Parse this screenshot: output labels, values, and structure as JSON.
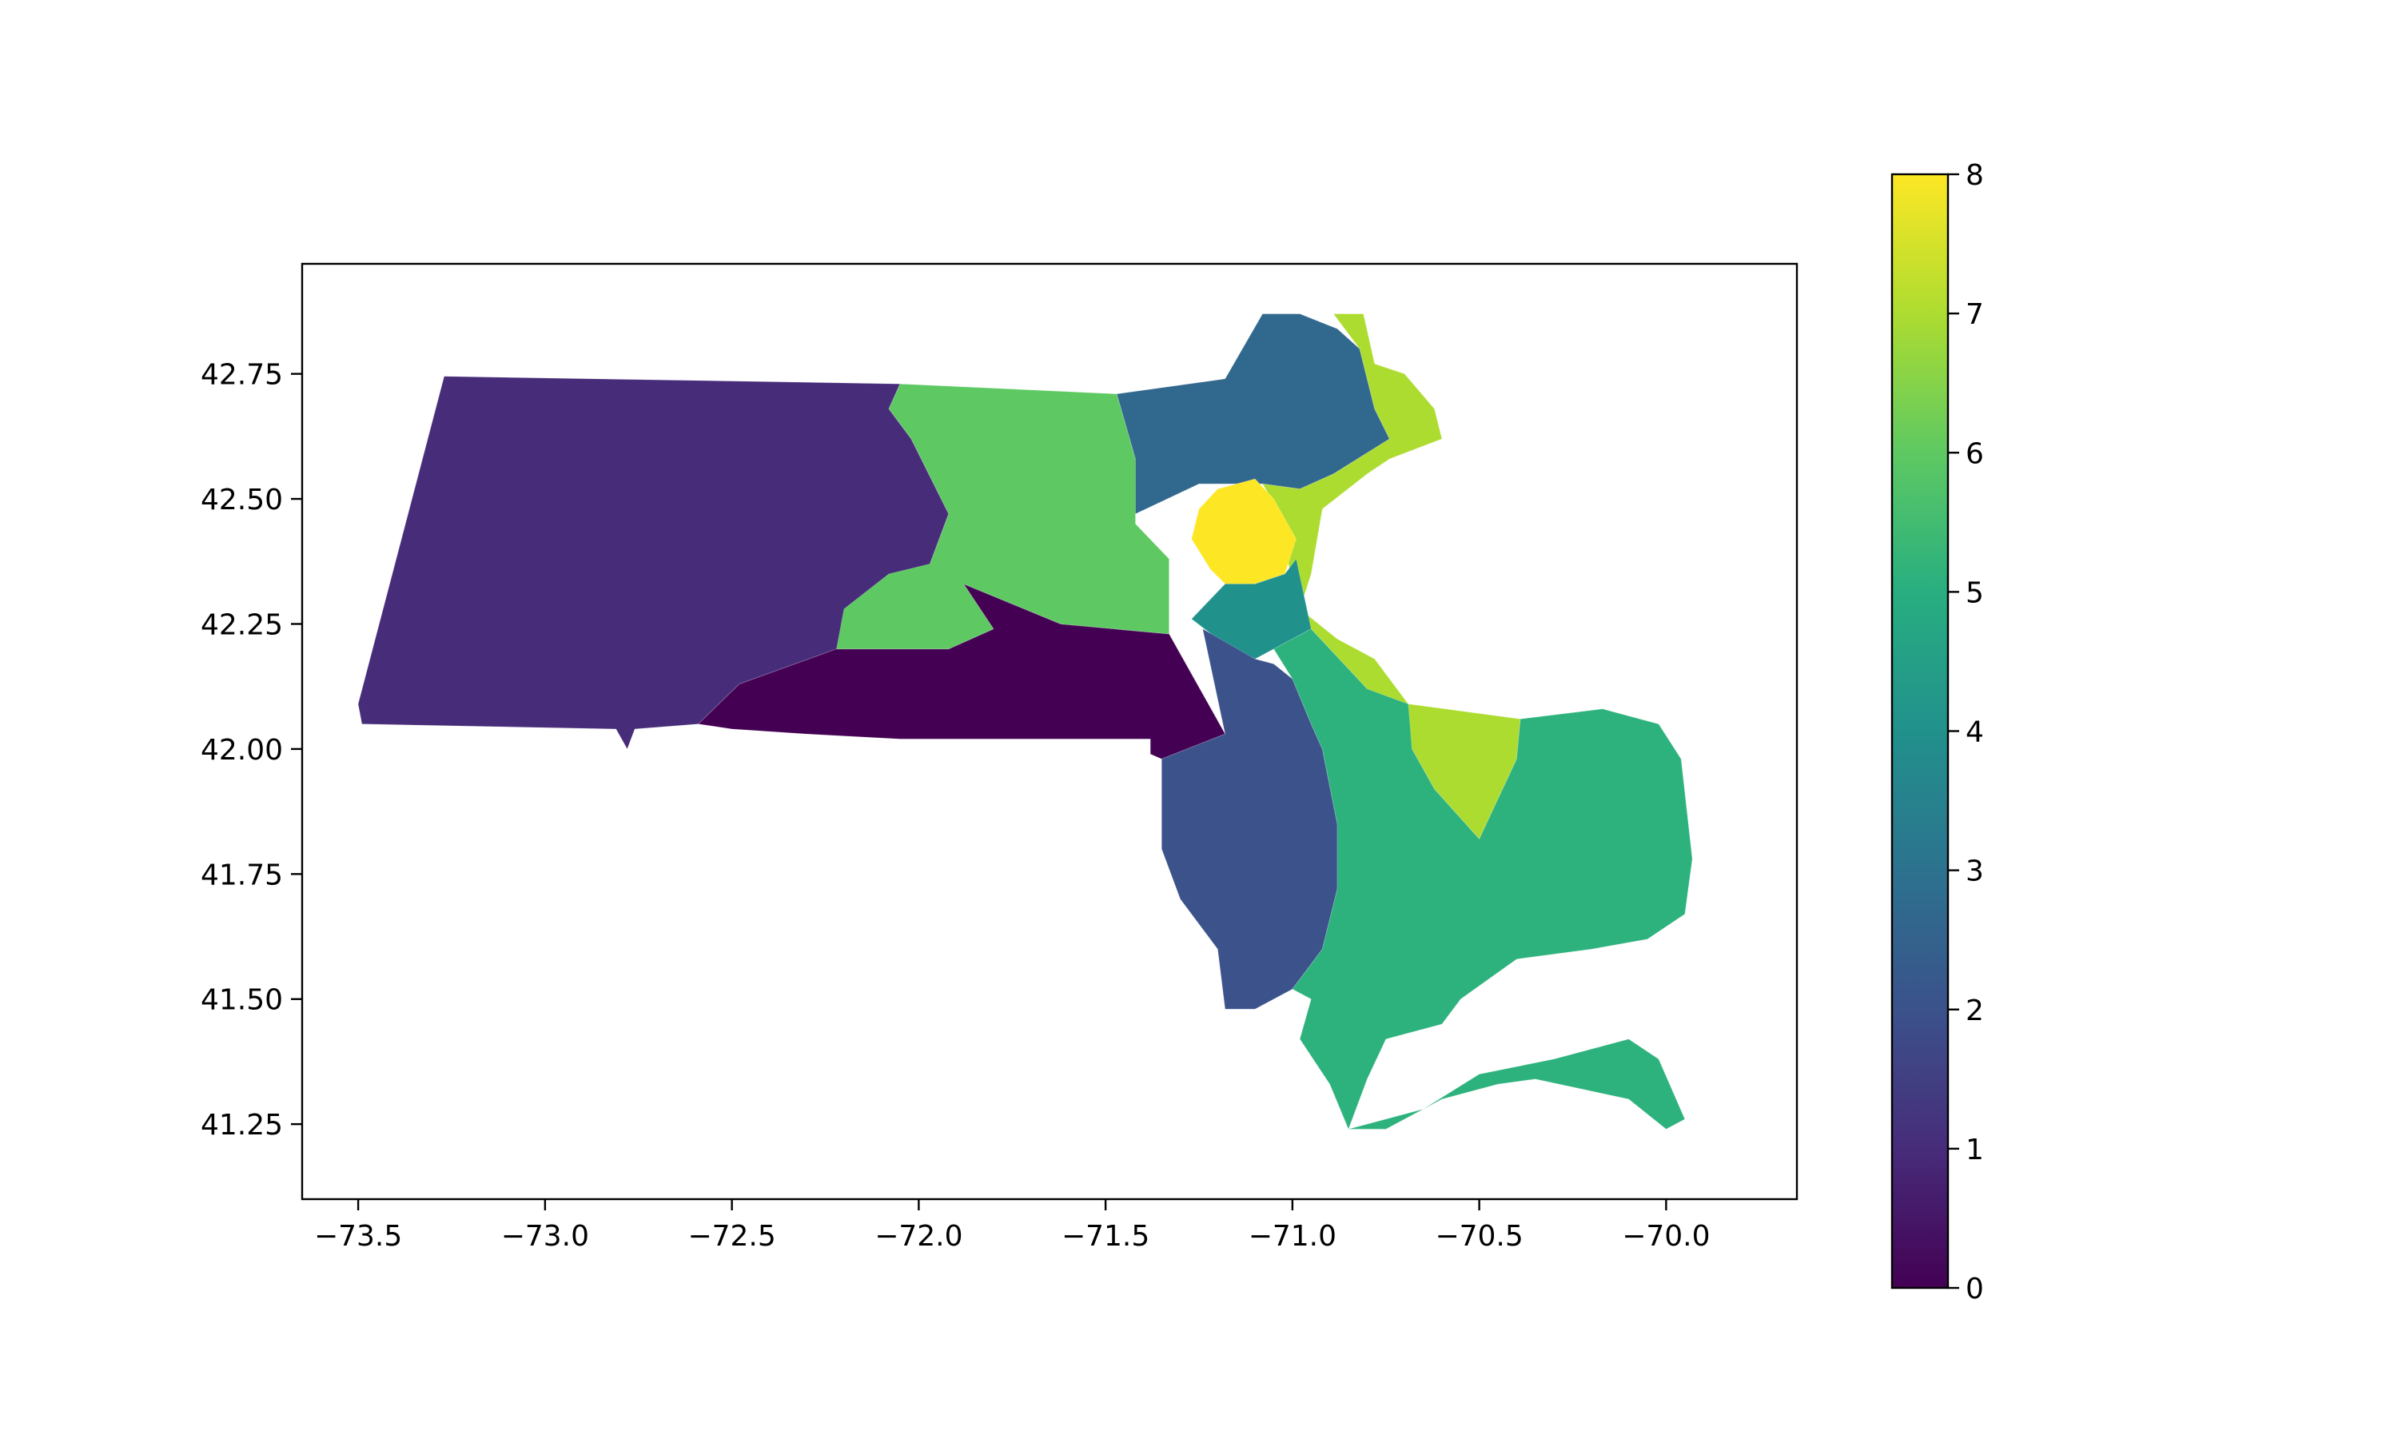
{
  "chart_data": {
    "type": "choropleth",
    "title": "",
    "xlabel": "",
    "ylabel": "",
    "xlim": [
      -73.65,
      -69.65
    ],
    "ylim": [
      41.1,
      42.97
    ],
    "grid": false,
    "x_ticks": [
      {
        "value": -73.5,
        "label": "−73.5"
      },
      {
        "value": -73.0,
        "label": "−73.0"
      },
      {
        "value": -72.5,
        "label": "−72.5"
      },
      {
        "value": -72.0,
        "label": "−72.0"
      },
      {
        "value": -71.5,
        "label": "−71.5"
      },
      {
        "value": -71.0,
        "label": "−71.0"
      },
      {
        "value": -70.5,
        "label": "−70.5"
      },
      {
        "value": -70.0,
        "label": "−70.0"
      }
    ],
    "y_ticks": [
      {
        "value": 42.75,
        "label": "42.75"
      },
      {
        "value": 42.5,
        "label": "42.50"
      },
      {
        "value": 42.25,
        "label": "42.25"
      },
      {
        "value": 42.0,
        "label": "42.00"
      },
      {
        "value": 41.75,
        "label": "41.75"
      },
      {
        "value": 41.5,
        "label": "41.50"
      },
      {
        "value": 41.25,
        "label": "41.25"
      }
    ],
    "colorbar": {
      "colormap": "viridis",
      "range": [
        0,
        8
      ],
      "ticks": [
        {
          "value": 0,
          "label": "0"
        },
        {
          "value": 1,
          "label": "1"
        },
        {
          "value": 2,
          "label": "2"
        },
        {
          "value": 3,
          "label": "3"
        },
        {
          "value": 4,
          "label": "4"
        },
        {
          "value": 5,
          "label": "5"
        },
        {
          "value": 6,
          "label": "6"
        },
        {
          "value": 7,
          "label": "7"
        },
        {
          "value": 8,
          "label": "8"
        }
      ]
    },
    "regions": [
      {
        "id": "district-1",
        "value": 1,
        "color": "#472c7a",
        "lonlat": [
          [
            -73.27,
            42.745
          ],
          [
            -72.05,
            42.73
          ],
          [
            -72.08,
            42.68
          ],
          [
            -72.02,
            42.62
          ],
          [
            -71.92,
            42.47
          ],
          [
            -71.97,
            42.37
          ],
          [
            -71.88,
            42.33
          ],
          [
            -71.8,
            42.24
          ],
          [
            -72.22,
            42.2
          ],
          [
            -72.48,
            42.13
          ],
          [
            -72.59,
            42.05
          ],
          [
            -72.76,
            42.04
          ],
          [
            -72.78,
            42.0
          ],
          [
            -72.81,
            42.04
          ],
          [
            -73.49,
            42.05
          ],
          [
            -73.5,
            42.09
          ]
        ]
      },
      {
        "id": "district-0",
        "value": 0,
        "color": "#440154",
        "lonlat": [
          [
            -72.59,
            42.05
          ],
          [
            -72.48,
            42.13
          ],
          [
            -72.22,
            42.2
          ],
          [
            -71.92,
            42.2
          ],
          [
            -71.8,
            42.24
          ],
          [
            -71.88,
            42.33
          ],
          [
            -71.62,
            42.25
          ],
          [
            -71.33,
            42.23
          ],
          [
            -71.24,
            42.11
          ],
          [
            -71.18,
            42.03
          ],
          [
            -71.35,
            41.98
          ],
          [
            -71.38,
            41.99
          ],
          [
            -71.38,
            42.02
          ],
          [
            -71.8,
            42.02
          ],
          [
            -72.05,
            42.02
          ],
          [
            -72.3,
            42.03
          ],
          [
            -72.5,
            42.04
          ]
        ]
      },
      {
        "id": "district-6",
        "value": 6,
        "color": "#5ec962",
        "lonlat": [
          [
            -72.05,
            42.73
          ],
          [
            -71.47,
            42.71
          ],
          [
            -71.42,
            42.58
          ],
          [
            -71.42,
            42.45
          ],
          [
            -71.33,
            42.38
          ],
          [
            -71.33,
            42.23
          ],
          [
            -71.62,
            42.25
          ],
          [
            -71.88,
            42.33
          ],
          [
            -71.8,
            42.24
          ],
          [
            -71.92,
            42.2
          ],
          [
            -72.22,
            42.2
          ],
          [
            -72.2,
            42.28
          ],
          [
            -72.08,
            42.35
          ],
          [
            -71.97,
            42.37
          ],
          [
            -71.92,
            42.47
          ],
          [
            -72.02,
            42.62
          ],
          [
            -72.08,
            42.68
          ]
        ]
      },
      {
        "id": "district-3",
        "value": 3,
        "color": "#31688e",
        "lonlat": [
          [
            -71.47,
            42.71
          ],
          [
            -71.18,
            42.74
          ],
          [
            -71.08,
            42.87
          ],
          [
            -70.98,
            42.87
          ],
          [
            -70.88,
            42.84
          ],
          [
            -70.82,
            42.8
          ],
          [
            -70.78,
            42.68
          ],
          [
            -70.74,
            42.62
          ],
          [
            -70.89,
            42.55
          ],
          [
            -70.98,
            42.52
          ],
          [
            -71.08,
            42.53
          ],
          [
            -71.25,
            42.53
          ],
          [
            -71.42,
            42.47
          ],
          [
            -71.42,
            42.58
          ]
        ]
      },
      {
        "id": "district-7",
        "value": 7,
        "color": "#addc30",
        "lonlat": [
          [
            -70.89,
            42.87
          ],
          [
            -70.81,
            42.87
          ],
          [
            -70.78,
            42.77
          ],
          [
            -70.7,
            42.75
          ],
          [
            -70.62,
            42.68
          ],
          [
            -70.6,
            42.62
          ],
          [
            -70.74,
            42.58
          ],
          [
            -70.8,
            42.55
          ],
          [
            -70.92,
            42.48
          ],
          [
            -70.95,
            42.35
          ],
          [
            -70.98,
            42.28
          ],
          [
            -70.88,
            42.22
          ],
          [
            -70.78,
            42.18
          ],
          [
            -70.69,
            42.09
          ],
          [
            -70.39,
            42.06
          ],
          [
            -70.4,
            41.98
          ],
          [
            -70.5,
            41.82
          ],
          [
            -70.62,
            41.92
          ],
          [
            -70.68,
            42.0
          ],
          [
            -70.8,
            42.12
          ],
          [
            -70.95,
            42.24
          ],
          [
            -71.05,
            42.26
          ],
          [
            -71.0,
            42.33
          ],
          [
            -71.04,
            42.48
          ],
          [
            -71.08,
            42.53
          ],
          [
            -70.98,
            42.52
          ],
          [
            -70.89,
            42.55
          ],
          [
            -70.74,
            42.62
          ],
          [
            -70.78,
            42.68
          ],
          [
            -70.82,
            42.8
          ]
        ]
      },
      {
        "id": "district-8",
        "value": 8,
        "color": "#fde725",
        "lonlat": [
          [
            -71.25,
            42.48
          ],
          [
            -71.2,
            42.52
          ],
          [
            -71.1,
            42.54
          ],
          [
            -71.05,
            42.5
          ],
          [
            -70.99,
            42.42
          ],
          [
            -71.02,
            42.35
          ],
          [
            -71.1,
            42.33
          ],
          [
            -71.18,
            42.33
          ],
          [
            -71.22,
            42.36
          ],
          [
            -71.27,
            42.42
          ]
        ]
      },
      {
        "id": "district-4",
        "value": 4,
        "color": "#21918c",
        "lonlat": [
          [
            -71.18,
            42.33
          ],
          [
            -71.1,
            42.33
          ],
          [
            -71.02,
            42.35
          ],
          [
            -70.99,
            42.38
          ],
          [
            -70.95,
            42.24
          ],
          [
            -71.05,
            42.2
          ],
          [
            -71.1,
            42.18
          ],
          [
            -71.2,
            42.22
          ],
          [
            -71.27,
            42.26
          ]
        ]
      },
      {
        "id": "district-2",
        "value": 2,
        "color": "#3b528b",
        "lonlat": [
          [
            -71.24,
            42.24
          ],
          [
            -71.1,
            42.18
          ],
          [
            -71.05,
            42.17
          ],
          [
            -71.0,
            42.14
          ],
          [
            -70.95,
            42.05
          ],
          [
            -70.92,
            42.0
          ],
          [
            -70.88,
            41.85
          ],
          [
            -70.88,
            41.72
          ],
          [
            -70.92,
            41.6
          ],
          [
            -71.0,
            41.52
          ],
          [
            -71.1,
            41.48
          ],
          [
            -71.18,
            41.48
          ],
          [
            -71.2,
            41.6
          ],
          [
            -71.3,
            41.7
          ],
          [
            -71.35,
            41.8
          ],
          [
            -71.35,
            41.98
          ],
          [
            -71.18,
            42.03
          ]
        ]
      },
      {
        "id": "district-5",
        "value": 5,
        "color": "#2db27d",
        "lonlat": [
          [
            -71.05,
            42.2
          ],
          [
            -70.95,
            42.24
          ],
          [
            -70.8,
            42.12
          ],
          [
            -70.69,
            42.09
          ],
          [
            -70.68,
            42.0
          ],
          [
            -70.62,
            41.92
          ],
          [
            -70.5,
            41.82
          ],
          [
            -70.4,
            41.98
          ],
          [
            -70.39,
            42.06
          ],
          [
            -70.17,
            42.08
          ],
          [
            -70.02,
            42.05
          ],
          [
            -69.96,
            41.98
          ],
          [
            -69.93,
            41.78
          ],
          [
            -69.95,
            41.67
          ],
          [
            -70.05,
            41.62
          ],
          [
            -70.2,
            41.6
          ],
          [
            -70.4,
            41.58
          ],
          [
            -70.55,
            41.5
          ],
          [
            -70.6,
            41.45
          ],
          [
            -70.75,
            41.42
          ],
          [
            -70.8,
            41.34
          ],
          [
            -70.85,
            41.24
          ],
          [
            -70.75,
            41.24
          ],
          [
            -70.6,
            41.3
          ],
          [
            -70.45,
            41.33
          ],
          [
            -70.35,
            41.34
          ],
          [
            -70.1,
            41.3
          ],
          [
            -70.0,
            41.24
          ],
          [
            -69.95,
            41.26
          ],
          [
            -70.02,
            41.38
          ],
          [
            -70.1,
            41.42
          ],
          [
            -70.3,
            41.38
          ],
          [
            -70.5,
            41.35
          ],
          [
            -70.65,
            41.28
          ],
          [
            -70.85,
            41.24
          ],
          [
            -70.9,
            41.33
          ],
          [
            -70.98,
            41.42
          ],
          [
            -70.95,
            41.5
          ],
          [
            -71.0,
            41.52
          ],
          [
            -70.92,
            41.6
          ],
          [
            -70.88,
            41.72
          ],
          [
            -70.88,
            41.85
          ],
          [
            -70.92,
            42.0
          ],
          [
            -70.95,
            42.05
          ],
          [
            -71.0,
            42.14
          ]
        ]
      }
    ]
  }
}
